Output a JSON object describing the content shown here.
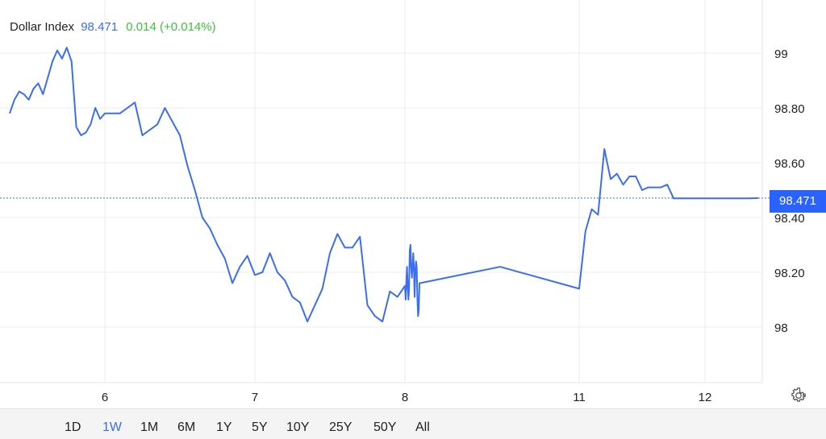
{
  "header": {
    "name": "Dollar Index",
    "price": "98.471",
    "change": "0.014 (+0.014%)"
  },
  "current_price_label": "98.471",
  "ranges": [
    "1D",
    "1W",
    "1M",
    "6M",
    "1Y",
    "5Y",
    "10Y",
    "25Y",
    "50Y",
    "All"
  ],
  "active_range": "1W",
  "colors": {
    "line": "#3b6ef0",
    "badge": "#2962ff",
    "positive": "#3ec23e"
  },
  "icons": {
    "settings": "gear-icon"
  },
  "chart_data": {
    "type": "line",
    "series": [
      {
        "x": [
          5.0,
          5.05,
          5.1,
          5.15,
          5.2,
          5.25,
          5.3,
          5.35,
          5.4,
          5.45,
          5.5,
          5.55,
          5.6,
          5.65,
          5.7,
          5.75,
          5.8,
          5.85,
          5.9,
          5.95,
          6.0,
          6.1,
          6.2,
          6.25,
          6.3,
          6.35,
          6.4,
          6.5,
          6.55,
          6.6,
          6.65,
          6.7,
          6.75,
          6.8,
          6.85,
          6.9,
          6.95,
          7.0,
          7.05,
          7.1,
          7.15,
          7.2,
          7.25,
          7.3,
          7.35,
          7.4,
          7.45,
          7.5,
          7.55,
          7.6,
          7.65,
          7.7,
          7.75,
          7.8,
          7.85,
          7.9,
          7.95,
          8.0,
          8.05,
          8.1,
          8.15,
          8.2,
          8.25,
          8.3,
          8.35,
          8.4,
          8.45,
          8.5,
          8.55,
          8.6,
          8.65,
          8.7,
          8.75,
          8.8,
          8.85,
          8.9,
          8.95,
          9.0,
          9.05,
          10.0,
          11.0,
          11.05,
          11.1,
          11.15,
          11.2,
          11.25,
          11.3,
          11.35,
          11.4,
          11.45,
          11.5,
          11.55,
          11.6,
          11.65,
          11.7,
          11.75,
          11.8,
          11.85,
          11.9,
          11.95,
          12.0,
          12.05,
          12.1,
          12.15,
          12.2,
          12.25,
          12.3
        ],
        "y": [
          98.78,
          98.83,
          98.86,
          98.85,
          98.83,
          98.87,
          98.89,
          98.85,
          98.91,
          98.97,
          99.01,
          98.98,
          99.02,
          98.97,
          98.73,
          98.7,
          98.71,
          98.74,
          98.8,
          98.76,
          98.78,
          98.78,
          98.82,
          98.7,
          98.72,
          98.74,
          98.8,
          98.7,
          98.59,
          98.5,
          98.4,
          98.36,
          98.3,
          98.25,
          98.16,
          98.22,
          98.26,
          98.19,
          98.2,
          98.27,
          98.2,
          98.17,
          98.11,
          98.09,
          98.02,
          98.08,
          98.14,
          98.27,
          98.34,
          98.29,
          98.29,
          98.33,
          98.08,
          98.04,
          98.02,
          98.13,
          98.11,
          98.15,
          98.1,
          98.16,
          98.22,
          98.15,
          98.1,
          98.14,
          98.28,
          98.3,
          98.22,
          98.18,
          98.22,
          98.27,
          98.22,
          98.11,
          98.2,
          98.24,
          98.22,
          98.11,
          98.04,
          98.06,
          98.16,
          98.22,
          98.14,
          98.35,
          98.43,
          98.41,
          98.65,
          98.54,
          98.56,
          98.52,
          98.55,
          98.55,
          98.5,
          98.51,
          98.51,
          98.51,
          98.52,
          98.47,
          98.47,
          98.47,
          98.47,
          98.47,
          98.47,
          98.47,
          98.47,
          98.47,
          98.47,
          98.47,
          98.471
        ]
      }
    ],
    "x_tick_labels": [
      "6",
      "7",
      "8",
      "11",
      "12"
    ],
    "y_tick_labels": [
      "99",
      "98.80",
      "98.60",
      "98.40",
      "98.20",
      "98"
    ],
    "y_ticks": [
      99,
      98.8,
      98.6,
      98.4,
      98.2,
      98
    ],
    "ylim": [
      97.8,
      99.15
    ],
    "last_value": 98.471,
    "grid": true
  }
}
